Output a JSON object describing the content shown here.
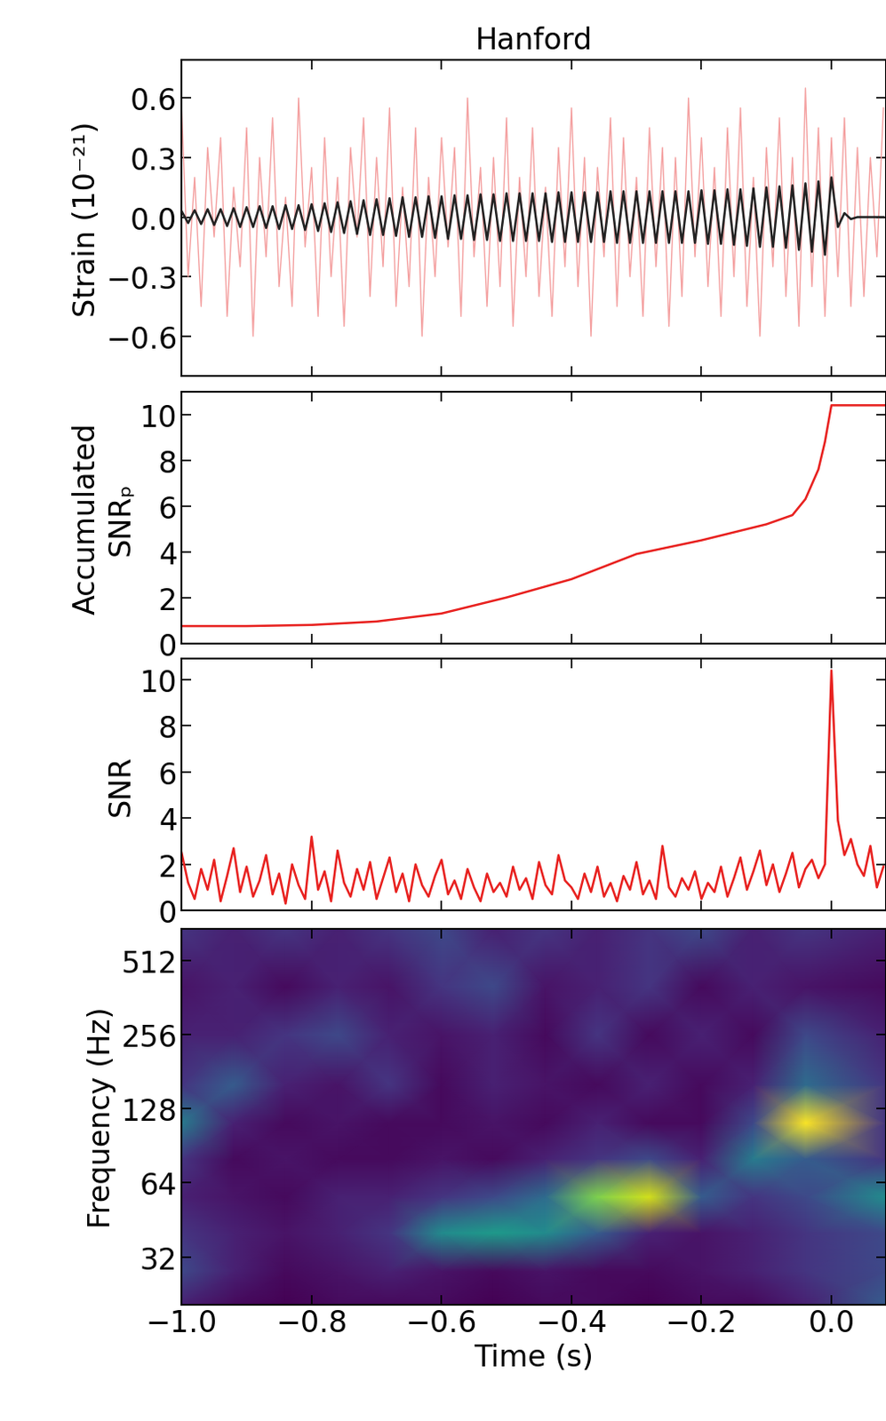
{
  "chart_data": [
    {
      "type": "line",
      "title": "Hanford",
      "ylabel": "Strain (10⁻²¹)",
      "tick_labels": "y",
      "xlim": [
        -1.0,
        0.084
      ],
      "ylim": [
        -0.8,
        0.79
      ],
      "xticks": [
        {
          "value": -1.0,
          "label": "−1.0"
        },
        {
          "value": -0.8,
          "label": "−0.8"
        },
        {
          "value": -0.6,
          "label": "−0.6"
        },
        {
          "value": -0.4,
          "label": "−0.4"
        },
        {
          "value": -0.2,
          "label": "−0.2"
        },
        {
          "value": 0.0,
          "label": "0.0"
        }
      ],
      "yticks": [
        {
          "value": -0.6,
          "label": "−0.6"
        },
        {
          "value": -0.3,
          "label": "−0.3"
        },
        {
          "value": 0.0,
          "label": "0.0"
        },
        0.3,
        0.6
      ],
      "x": [
        -1.0,
        -0.99,
        -0.98,
        -0.97,
        -0.96,
        -0.95,
        -0.94,
        -0.93,
        -0.92,
        -0.91,
        -0.9,
        -0.89,
        -0.88,
        -0.87,
        -0.86,
        -0.85,
        -0.84,
        -0.83,
        -0.82,
        -0.81,
        -0.8,
        -0.79,
        -0.78,
        -0.77,
        -0.76,
        -0.75,
        -0.74,
        -0.73,
        -0.72,
        -0.71,
        -0.7,
        -0.69,
        -0.68,
        -0.67,
        -0.66,
        -0.65,
        -0.64,
        -0.63,
        -0.62,
        -0.61,
        -0.6,
        -0.59,
        -0.58,
        -0.57,
        -0.56,
        -0.55,
        -0.54,
        -0.53,
        -0.52,
        -0.51,
        -0.5,
        -0.49,
        -0.48,
        -0.47,
        -0.46,
        -0.45,
        -0.44,
        -0.43,
        -0.42,
        -0.41,
        -0.4,
        -0.39,
        -0.38,
        -0.37,
        -0.36,
        -0.35,
        -0.34,
        -0.33,
        -0.32,
        -0.31,
        -0.3,
        -0.29,
        -0.28,
        -0.27,
        -0.26,
        -0.25,
        -0.24,
        -0.23,
        -0.22,
        -0.21,
        -0.2,
        -0.19,
        -0.18,
        -0.17,
        -0.16,
        -0.15,
        -0.14,
        -0.13,
        -0.12,
        -0.11,
        -0.1,
        -0.09,
        -0.08,
        -0.07,
        -0.06,
        -0.05,
        -0.04,
        -0.03,
        -0.02,
        -0.01,
        0.0,
        0.01,
        0.02,
        0.03,
        0.04,
        0.05,
        0.06,
        0.07,
        0.08
      ],
      "series": [
        {
          "color": "#f4a0a0",
          "values": [
            0.55,
            -0.3,
            0.2,
            -0.45,
            0.35,
            -0.1,
            0.4,
            -0.5,
            0.15,
            -0.25,
            0.45,
            -0.6,
            0.3,
            -0.2,
            0.5,
            -0.35,
            0.1,
            -0.45,
            0.6,
            -0.15,
            0.25,
            -0.5,
            0.4,
            -0.3,
            0.2,
            -0.55,
            0.35,
            -0.1,
            0.5,
            -0.4,
            0.3,
            -0.25,
            0.55,
            -0.45,
            0.15,
            -0.35,
            0.45,
            -0.6,
            0.2,
            -0.3,
            0.4,
            -0.15,
            0.35,
            -0.5,
            0.6,
            -0.2,
            0.25,
            -0.45,
            0.3,
            -0.35,
            0.5,
            -0.55,
            0.2,
            -0.3,
            0.45,
            -0.4,
            0.15,
            -0.5,
            0.35,
            -0.25,
            0.55,
            -0.35,
            0.3,
            -0.6,
            0.25,
            -0.2,
            0.5,
            -0.45,
            0.4,
            -0.3,
            0.2,
            -0.5,
            0.45,
            -0.25,
            0.35,
            -0.55,
            0.3,
            -0.4,
            0.6,
            -0.2,
            0.4,
            -0.35,
            0.25,
            -0.5,
            0.45,
            -0.3,
            0.55,
            -0.45,
            0.2,
            -0.6,
            0.35,
            -0.25,
            0.5,
            -0.4,
            0.3,
            -0.55,
            0.65,
            -0.35,
            0.45,
            -0.5,
            0.4,
            -0.3,
            0.5,
            -0.45,
            0.35,
            -0.4,
            0.3,
            -0.2,
            0.55
          ]
        },
        {
          "color": "#222222",
          "values": [
            0.03,
            -0.03,
            0.035,
            -0.035,
            0.04,
            -0.04,
            0.04,
            -0.045,
            0.045,
            -0.05,
            0.05,
            -0.05,
            0.055,
            -0.055,
            0.055,
            -0.06,
            0.06,
            -0.06,
            0.06,
            -0.065,
            0.065,
            -0.07,
            0.07,
            -0.075,
            0.075,
            -0.08,
            0.08,
            -0.085,
            0.085,
            -0.09,
            0.09,
            -0.09,
            0.095,
            -0.095,
            0.1,
            -0.1,
            0.1,
            -0.1,
            0.105,
            -0.105,
            0.105,
            -0.11,
            0.11,
            -0.11,
            0.11,
            -0.115,
            0.115,
            -0.115,
            0.115,
            -0.12,
            0.12,
            -0.12,
            0.12,
            -0.12,
            0.12,
            -0.12,
            0.12,
            -0.125,
            0.125,
            -0.125,
            0.125,
            -0.125,
            0.125,
            -0.125,
            0.125,
            -0.125,
            0.13,
            -0.13,
            0.13,
            -0.13,
            0.13,
            -0.13,
            0.13,
            -0.13,
            0.13,
            -0.13,
            0.13,
            -0.13,
            0.13,
            -0.13,
            0.135,
            -0.135,
            0.135,
            -0.135,
            0.14,
            -0.14,
            0.14,
            -0.145,
            0.145,
            -0.15,
            0.15,
            -0.15,
            0.155,
            -0.155,
            0.16,
            -0.165,
            0.17,
            -0.175,
            0.18,
            -0.19,
            0.2,
            -0.05,
            0.02,
            -0.01,
            0.0,
            0.0,
            0.0,
            0.0,
            0.0
          ]
        }
      ]
    },
    {
      "type": "line",
      "ylabel": "Accumulated\nSNRₚ",
      "tick_labels": "y",
      "xlim": [
        -1.0,
        0.084
      ],
      "ylim": [
        0,
        11
      ],
      "xticks": [
        {
          "value": -1.0,
          "label": "−1.0"
        },
        {
          "value": -0.8,
          "label": "−0.8"
        },
        {
          "value": -0.6,
          "label": "−0.6"
        },
        {
          "value": -0.4,
          "label": "−0.4"
        },
        {
          "value": -0.2,
          "label": "−0.2"
        },
        {
          "value": 0.0,
          "label": "0.0"
        }
      ],
      "yticks": [
        0,
        2,
        4,
        6,
        8,
        10
      ],
      "x": [
        -1.0,
        -0.9,
        -0.8,
        -0.7,
        -0.6,
        -0.5,
        -0.4,
        -0.3,
        -0.2,
        -0.1,
        -0.06,
        -0.04,
        -0.02,
        -0.01,
        0.0,
        0.084
      ],
      "series": [
        {
          "color": "#e8201e",
          "values": [
            0.75,
            0.75,
            0.8,
            0.95,
            1.3,
            2.0,
            2.8,
            3.9,
            4.5,
            5.2,
            5.6,
            6.3,
            7.6,
            8.8,
            10.4,
            10.4
          ]
        }
      ]
    },
    {
      "type": "line",
      "ylabel": "SNR",
      "tick_labels": "y",
      "xlim": [
        -1.0,
        0.084
      ],
      "ylim": [
        0,
        10.9
      ],
      "xticks": [
        {
          "value": -1.0,
          "label": "−1.0"
        },
        {
          "value": -0.8,
          "label": "−0.8"
        },
        {
          "value": -0.6,
          "label": "−0.6"
        },
        {
          "value": -0.4,
          "label": "−0.4"
        },
        {
          "value": -0.2,
          "label": "−0.2"
        },
        {
          "value": 0.0,
          "label": "0.0"
        }
      ],
      "yticks": [
        0,
        2,
        4,
        6,
        8,
        10
      ],
      "x": [
        -1.0,
        -0.99,
        -0.98,
        -0.97,
        -0.96,
        -0.95,
        -0.94,
        -0.93,
        -0.92,
        -0.91,
        -0.9,
        -0.89,
        -0.88,
        -0.87,
        -0.86,
        -0.85,
        -0.84,
        -0.83,
        -0.82,
        -0.81,
        -0.8,
        -0.79,
        -0.78,
        -0.77,
        -0.76,
        -0.75,
        -0.74,
        -0.73,
        -0.72,
        -0.71,
        -0.7,
        -0.69,
        -0.68,
        -0.67,
        -0.66,
        -0.65,
        -0.64,
        -0.63,
        -0.62,
        -0.61,
        -0.6,
        -0.59,
        -0.58,
        -0.57,
        -0.56,
        -0.55,
        -0.54,
        -0.53,
        -0.52,
        -0.51,
        -0.5,
        -0.49,
        -0.48,
        -0.47,
        -0.46,
        -0.45,
        -0.44,
        -0.43,
        -0.42,
        -0.41,
        -0.4,
        -0.39,
        -0.38,
        -0.37,
        -0.36,
        -0.35,
        -0.34,
        -0.33,
        -0.32,
        -0.31,
        -0.3,
        -0.29,
        -0.28,
        -0.27,
        -0.26,
        -0.25,
        -0.24,
        -0.23,
        -0.22,
        -0.21,
        -0.2,
        -0.19,
        -0.18,
        -0.17,
        -0.16,
        -0.15,
        -0.14,
        -0.13,
        -0.12,
        -0.11,
        -0.1,
        -0.09,
        -0.08,
        -0.07,
        -0.06,
        -0.05,
        -0.04,
        -0.03,
        -0.02,
        -0.01,
        0.0,
        0.01,
        0.02,
        0.03,
        0.04,
        0.05,
        0.06,
        0.07,
        0.08
      ],
      "series": [
        {
          "color": "#e8201e",
          "values": [
            2.5,
            1.2,
            0.5,
            1.8,
            0.9,
            2.2,
            0.4,
            1.5,
            2.7,
            0.8,
            1.9,
            0.6,
            1.3,
            2.4,
            0.7,
            1.6,
            0.3,
            2.0,
            1.1,
            0.5,
            3.2,
            0.9,
            1.7,
            0.4,
            2.6,
            1.2,
            0.6,
            1.8,
            0.9,
            2.1,
            0.5,
            1.4,
            2.3,
            0.8,
            1.6,
            0.4,
            2.0,
            1.1,
            0.6,
            1.5,
            2.2,
            0.7,
            1.3,
            0.5,
            1.8,
            1.0,
            0.4,
            1.6,
            0.8,
            1.2,
            0.6,
            1.9,
            0.9,
            1.4,
            0.5,
            2.1,
            1.1,
            0.7,
            2.4,
            1.3,
            1.0,
            0.5,
            1.6,
            0.8,
            1.9,
            0.6,
            1.2,
            0.4,
            1.5,
            0.9,
            2.1,
            0.7,
            1.3,
            0.5,
            2.8,
            1.0,
            0.6,
            1.4,
            0.9,
            1.7,
            0.5,
            1.2,
            0.8,
            1.9,
            0.6,
            1.4,
            2.3,
            0.9,
            1.7,
            2.6,
            1.1,
            2.0,
            0.8,
            1.6,
            2.5,
            1.0,
            1.8,
            2.2,
            1.4,
            2.0,
            10.4,
            3.9,
            2.4,
            3.1,
            2.0,
            1.5,
            2.8,
            1.0,
            1.9
          ]
        }
      ]
    },
    {
      "type": "heatmap",
      "ylabel": "Frequency (Hz)",
      "xlabel": "Time (s)",
      "log": "y",
      "xlim": [
        -1.0,
        0.084
      ],
      "ylim": [
        20.5,
        688
      ],
      "xticks": [
        {
          "value": -1.0,
          "label": "−1.0"
        },
        {
          "value": -0.8,
          "label": "−0.8"
        },
        {
          "value": -0.6,
          "label": "−0.6"
        },
        {
          "value": -0.4,
          "label": "−0.4"
        },
        {
          "value": -0.2,
          "label": "−0.2"
        },
        {
          "value": 0.0,
          "label": "0.0"
        }
      ],
      "yticks": [
        32,
        64,
        128,
        256,
        512
      ],
      "x": [
        -1.0,
        -0.92,
        -0.84,
        -0.76,
        -0.68,
        -0.6,
        -0.52,
        -0.44,
        -0.36,
        -0.28,
        -0.2,
        -0.12,
        -0.04,
        0.084
      ],
      "y": [
        20.5,
        28,
        40,
        56,
        80,
        112,
        160,
        256,
        400,
        688
      ],
      "cells": [
        [
          0.15,
          0.1,
          0.08,
          0.1,
          0.1,
          0.1,
          0.08,
          0.1,
          0.1,
          0.08,
          0.1,
          0.1,
          0.15,
          0.3
        ],
        [
          0.25,
          0.15,
          0.1,
          0.12,
          0.15,
          0.12,
          0.1,
          0.12,
          0.1,
          0.1,
          0.12,
          0.15,
          0.2,
          0.25
        ],
        [
          0.2,
          0.15,
          0.12,
          0.15,
          0.2,
          0.45,
          0.5,
          0.45,
          0.3,
          0.15,
          0.12,
          0.15,
          0.2,
          0.25
        ],
        [
          0.15,
          0.12,
          0.1,
          0.15,
          0.15,
          0.2,
          0.25,
          0.35,
          0.7,
          0.8,
          0.3,
          0.2,
          0.25,
          0.45
        ],
        [
          0.2,
          0.1,
          0.12,
          0.1,
          0.1,
          0.12,
          0.1,
          0.15,
          0.2,
          0.25,
          0.15,
          0.4,
          0.3,
          0.2
        ],
        [
          0.4,
          0.15,
          0.1,
          0.12,
          0.1,
          0.1,
          0.12,
          0.1,
          0.15,
          0.1,
          0.1,
          0.25,
          0.85,
          0.2
        ],
        [
          0.2,
          0.3,
          0.15,
          0.12,
          0.2,
          0.1,
          0.15,
          0.12,
          0.1,
          0.15,
          0.1,
          0.15,
          0.35,
          0.2
        ],
        [
          0.15,
          0.15,
          0.2,
          0.25,
          0.15,
          0.12,
          0.15,
          0.1,
          0.2,
          0.1,
          0.15,
          0.1,
          0.25,
          0.15
        ],
        [
          0.12,
          0.15,
          0.1,
          0.15,
          0.12,
          0.2,
          0.25,
          0.12,
          0.15,
          0.2,
          0.1,
          0.15,
          0.12,
          0.1
        ],
        [
          0.2,
          0.15,
          0.2,
          0.15,
          0.2,
          0.25,
          0.15,
          0.2,
          0.15,
          0.2,
          0.25,
          0.15,
          0.2,
          0.15
        ]
      ]
    }
  ]
}
